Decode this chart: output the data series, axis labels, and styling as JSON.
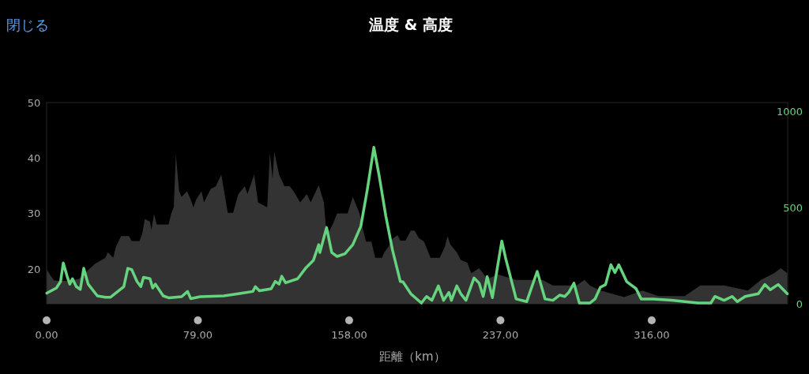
{
  "chart_data": {
    "type": "area",
    "title": "温度 & 高度",
    "xlabel": "距離（km）",
    "annotations": [
      "閉じる"
    ],
    "xlim": [
      0,
      387
    ],
    "xticks": [
      {
        "value": 0,
        "label": "0.00"
      },
      {
        "value": 79,
        "label": "79.00"
      },
      {
        "value": 158,
        "label": "158.00"
      },
      {
        "value": 237,
        "label": "237.00"
      },
      {
        "value": 316,
        "label": "316.00"
      }
    ],
    "ylim": [
      13.7,
      50
    ],
    "yticks": [
      20,
      30,
      40,
      50
    ],
    "y2lim": [
      0,
      1045
    ],
    "y2ticks": [
      0,
      500,
      1000
    ],
    "grid": false,
    "series": [
      {
        "type": "area",
        "color": "#333333",
        "x": [
          0.1,
          1.8,
          3.9,
          11.4,
          16.9,
          22.4,
          25.2,
          30.7,
          32.0,
          34.8,
          36.2,
          38.9,
          43.0,
          44.4,
          48.5,
          49.9,
          51.3,
          54.0,
          54.7,
          56.1,
          57.5,
          63.7,
          65.0,
          66.4,
          67.5,
          69.2,
          70.5,
          73.3,
          74.7,
          76.7,
          78.1,
          80.9,
          82.2,
          85.7,
          88.4,
          91.2,
          92.5,
          94.6,
          97.4,
          100.1,
          103.5,
          104.9,
          108.4,
          110.4,
          115.2,
          116.6,
          118.0,
          118.9,
          121.4,
          124.2,
          126.9,
          129.0,
          132.4,
          135.9,
          137.9,
          142.1,
          144.8,
          145.8,
          147.6,
          149.6,
          151.7,
          157.2,
          159.9,
          163.4,
          164.7,
          166.8,
          169.6,
          171.6,
          175.1,
          176.4,
          178.5,
          180.6,
          183.3,
          184.7,
          187.4,
          190.2,
          192.2,
          194.3,
          197.1,
          199.1,
          200.5,
          205.3,
          208.0,
          209.4,
          210.8,
          214.2,
          216.3,
          219.7,
          221.8,
          225.9,
          230.1,
          235.6,
          245.2,
          258.9,
          264.4,
          276.8,
          280.9,
          283.7,
          289.2,
          301.6,
          305.7,
          311.2,
          319.4,
          333.2,
          341.4,
          353.8,
          366.2,
          373.0,
          379.9,
          383.4,
          386.8
        ],
        "values": [
          19.9,
          18.9,
          17.9,
          17.8,
          18.2,
          20.0,
          20.9,
          22.0,
          23.0,
          22.0,
          24.0,
          25.9,
          25.9,
          25.0,
          25.0,
          26.3,
          29.0,
          28.5,
          27.0,
          29.9,
          28.0,
          28.0,
          29.9,
          31.1,
          40.6,
          34.0,
          33.0,
          34.0,
          33.0,
          31.1,
          32.5,
          34.0,
          32.0,
          34.4,
          34.9,
          37.0,
          34.4,
          30.1,
          30.1,
          33.5,
          34.9,
          33.5,
          37.0,
          32.0,
          31.1,
          40.9,
          36.3,
          41.1,
          37.0,
          34.9,
          34.9,
          34.0,
          32.0,
          33.5,
          32.0,
          35.1,
          32.0,
          27.8,
          26.8,
          28.2,
          30.0,
          30.0,
          33.0,
          30.0,
          27.8,
          24.9,
          24.9,
          22.0,
          22.0,
          23.0,
          24.0,
          25.4,
          26.1,
          25.1,
          25.1,
          26.9,
          26.9,
          25.6,
          24.9,
          23.2,
          22.0,
          22.0,
          24.0,
          25.9,
          24.4,
          23.0,
          21.6,
          21.1,
          19.2,
          20.1,
          18.2,
          19.0,
          18.0,
          18.0,
          17.0,
          17.0,
          18.0,
          17.0,
          16.1,
          14.9,
          15.4,
          16.1,
          15.1,
          15.1,
          17.0,
          17.0,
          16.1,
          18.0,
          19.2,
          20.1,
          19.2
        ]
      },
      {
        "type": "line",
        "axis": "y2",
        "color": "#66d37e",
        "x": [
          0.1,
          5.1,
          7.3,
          8.7,
          10.7,
          12.1,
          13.5,
          15.5,
          17.6,
          19.4,
          21.7,
          26.5,
          30.7,
          33.4,
          40.3,
          42.4,
          44.4,
          47.2,
          49.2,
          50.6,
          54.0,
          55.4,
          56.8,
          60.9,
          63.7,
          70.5,
          73.6,
          75.3,
          80.2,
          92.5,
          102.2,
          107.7,
          109.0,
          111.1,
          117.3,
          119.4,
          121.4,
          122.8,
          124.8,
          131.1,
          135.2,
          139.3,
          142.1,
          142.7,
          146.2,
          148.9,
          151.7,
          155.8,
          159.9,
          164.1,
          167.5,
          170.9,
          173.7,
          177.1,
          180.6,
          184.7,
          186.1,
          190.2,
          195.7,
          198.4,
          201.2,
          204.6,
          207.3,
          210.1,
          211.4,
          214.2,
          216.3,
          219.0,
          223.2,
          225.9,
          228.0,
          230.1,
          232.8,
          237.7,
          239.7,
          245.2,
          250.7,
          256.2,
          260.3,
          264.4,
          267.9,
          270.6,
          272.7,
          275.4,
          278.2,
          283.7,
          286.4,
          289.2,
          291.9,
          294.7,
          296.8,
          298.8,
          303.0,
          307.8,
          310.5,
          316.7,
          326.3,
          340.1,
          346.9,
          349.0,
          353.8,
          358.0,
          360.7,
          364.8,
          371.7,
          375.1,
          377.9,
          382.0,
          386.8
        ],
        "values": [
          55,
          82,
          116,
          212,
          143,
          102,
          130,
          89,
          75,
          184,
          102,
          41,
          34,
          34,
          89,
          184,
          178,
          116,
          89,
          137,
          130,
          82,
          102,
          41,
          31,
          37,
          64,
          27,
          37,
          41,
          55,
          64,
          89,
          68,
          78,
          116,
          102,
          143,
          109,
          130,
          184,
          225,
          307,
          266,
          396,
          266,
          246,
          260,
          307,
          403,
          594,
          813,
          663,
          458,
          280,
          116,
          114,
          52,
          4,
          38,
          18,
          93,
          18,
          59,
          18,
          93,
          52,
          18,
          134,
          107,
          38,
          141,
          32,
          326,
          237,
          25,
          11,
          168,
          25,
          18,
          45,
          38,
          59,
          107,
          4,
          4,
          25,
          86,
          100,
          203,
          162,
          203,
          114,
          79,
          25,
          25,
          18,
          4,
          4,
          38,
          18,
          38,
          11,
          38,
          52,
          100,
          73,
          100,
          52
        ]
      }
    ]
  }
}
